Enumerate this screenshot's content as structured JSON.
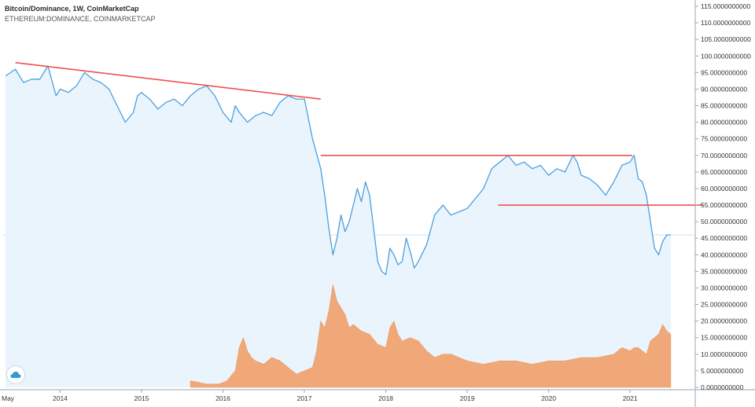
{
  "header": {
    "line1": "Bitcoin/Dominance, 1W, CoinMarketCap",
    "line2": "ETHEREUM:DOMINANCE, COINMARKETCAP"
  },
  "logo_icon": "cloud-logo-icon",
  "colors": {
    "btc_line": "#4a9fe0",
    "btc_fill": "#eaf4fd",
    "eth_fill": "#f0a878",
    "trendline": "#f05050",
    "axis_text": "#333333",
    "grid": "#dde6ee"
  },
  "chart_data": {
    "type": "line",
    "x_first_tick_label": "May",
    "x_ticks": [
      "2014",
      "2015",
      "2016",
      "2017",
      "2018",
      "2019",
      "2020",
      "2021"
    ],
    "x_tick_values": [
      2014,
      2015,
      2016,
      2017,
      2018,
      2019,
      2020,
      2021
    ],
    "xlim": [
      2013.3,
      2021.8
    ],
    "ylim": [
      0,
      115
    ],
    "y_ticks": [
      "115.0000000000",
      "110.0000000000",
      "105.0000000000",
      "100.0000000000",
      "95.0000000000",
      "90.0000000000",
      "85.0000000000",
      "80.0000000000",
      "75.0000000000",
      "70.0000000000",
      "65.0000000000",
      "60.0000000000",
      "55.0000000000",
      "50.0000000000",
      "45.0000000000",
      "40.0000000000",
      "35.0000000000",
      "30.0000000000",
      "25.0000000000",
      "20.0000000000",
      "15.0000000000",
      "10.0000000000",
      "5.0000000000",
      "0.0000000000"
    ],
    "y_tick_values": [
      115,
      110,
      105,
      100,
      95,
      90,
      85,
      80,
      75,
      70,
      65,
      60,
      55,
      50,
      45,
      40,
      35,
      30,
      25,
      20,
      15,
      10,
      5,
      0
    ],
    "current_value_line": 46,
    "series": [
      {
        "type": "area-line",
        "x": [
          2013.33,
          2013.45,
          2013.55,
          2013.65,
          2013.75,
          2013.85,
          2013.95,
          2014.0,
          2014.1,
          2014.2,
          2014.3,
          2014.4,
          2014.5,
          2014.6,
          2014.7,
          2014.8,
          2014.9,
          2014.95,
          2015.0,
          2015.1,
          2015.2,
          2015.3,
          2015.4,
          2015.5,
          2015.6,
          2015.7,
          2015.8,
          2015.9,
          2016.0,
          2016.1,
          2016.15,
          2016.2,
          2016.3,
          2016.4,
          2016.5,
          2016.6,
          2016.7,
          2016.8,
          2016.9,
          2017.0,
          2017.1,
          2017.2,
          2017.25,
          2017.3,
          2017.35,
          2017.4,
          2017.45,
          2017.5,
          2017.55,
          2017.6,
          2017.65,
          2017.7,
          2017.75,
          2017.8,
          2017.85,
          2017.9,
          2017.95,
          2018.0,
          2018.05,
          2018.1,
          2018.15,
          2018.2,
          2018.25,
          2018.3,
          2018.35,
          2018.4,
          2018.5,
          2018.6,
          2018.7,
          2018.8,
          2018.9,
          2019.0,
          2019.1,
          2019.2,
          2019.3,
          2019.4,
          2019.5,
          2019.6,
          2019.7,
          2019.8,
          2019.9,
          2020.0,
          2020.1,
          2020.2,
          2020.3,
          2020.35,
          2020.4,
          2020.5,
          2020.6,
          2020.7,
          2020.8,
          2020.9,
          2021.0,
          2021.05,
          2021.1,
          2021.15,
          2021.2,
          2021.25,
          2021.3,
          2021.35,
          2021.4,
          2021.45,
          2021.5
        ],
        "values": [
          94,
          96,
          92,
          93,
          93,
          97,
          88,
          90,
          89,
          91,
          95,
          93,
          92,
          90,
          85,
          80,
          83,
          88,
          89,
          87,
          84,
          86,
          87,
          85,
          88,
          90,
          91,
          88,
          83,
          80,
          85,
          83,
          80,
          82,
          83,
          82,
          86,
          88,
          87,
          87,
          75,
          66,
          58,
          48,
          40,
          45,
          52,
          47,
          50,
          55,
          60,
          56,
          62,
          58,
          48,
          38,
          35,
          34,
          42,
          40,
          37,
          38,
          45,
          41,
          36,
          38,
          43,
          52,
          55,
          52,
          53,
          54,
          57,
          60,
          66,
          68,
          70,
          67,
          68,
          66,
          67,
          64,
          66,
          65,
          70,
          68,
          64,
          63,
          61,
          58,
          62,
          67,
          68,
          70,
          63,
          62,
          58,
          50,
          42,
          40,
          44,
          46,
          46
        ]
      },
      {
        "type": "area",
        "x": [
          2015.6,
          2015.8,
          2015.95,
          2016.05,
          2016.15,
          2016.2,
          2016.25,
          2016.3,
          2016.35,
          2016.4,
          2016.5,
          2016.6,
          2016.7,
          2016.8,
          2016.9,
          2017.0,
          2017.1,
          2017.15,
          2017.2,
          2017.25,
          2017.3,
          2017.35,
          2017.4,
          2017.45,
          2017.5,
          2017.55,
          2017.6,
          2017.7,
          2017.8,
          2017.9,
          2018.0,
          2018.05,
          2018.1,
          2018.15,
          2018.2,
          2018.3,
          2018.4,
          2018.5,
          2018.6,
          2018.7,
          2018.8,
          2018.9,
          2019.0,
          2019.2,
          2019.4,
          2019.6,
          2019.8,
          2020.0,
          2020.2,
          2020.4,
          2020.6,
          2020.8,
          2020.9,
          2021.0,
          2021.05,
          2021.1,
          2021.2,
          2021.25,
          2021.3,
          2021.35,
          2021.4,
          2021.45,
          2021.5
        ],
        "values": [
          2,
          1,
          1,
          2,
          5,
          12,
          15,
          11,
          9,
          8,
          7,
          9,
          8,
          6,
          4,
          5,
          6,
          11,
          20,
          18,
          23,
          31,
          26,
          24,
          22,
          18,
          19,
          17,
          16,
          13,
          12,
          18,
          20,
          16,
          14,
          15,
          14,
          11,
          9,
          10,
          10,
          9,
          8,
          7,
          8,
          8,
          7,
          8,
          8,
          9,
          9,
          10,
          12,
          11,
          12,
          12,
          10,
          14,
          15,
          16,
          19,
          17,
          16
        ]
      }
    ],
    "trendlines": [
      {
        "x": [
          2013.45,
          2017.2
        ],
        "y": [
          98,
          87
        ]
      },
      {
        "x": [
          2017.2,
          2021.03
        ],
        "y": [
          70,
          70
        ]
      },
      {
        "x": [
          2019.38,
          2021.9
        ],
        "y": [
          55,
          55
        ]
      }
    ]
  }
}
